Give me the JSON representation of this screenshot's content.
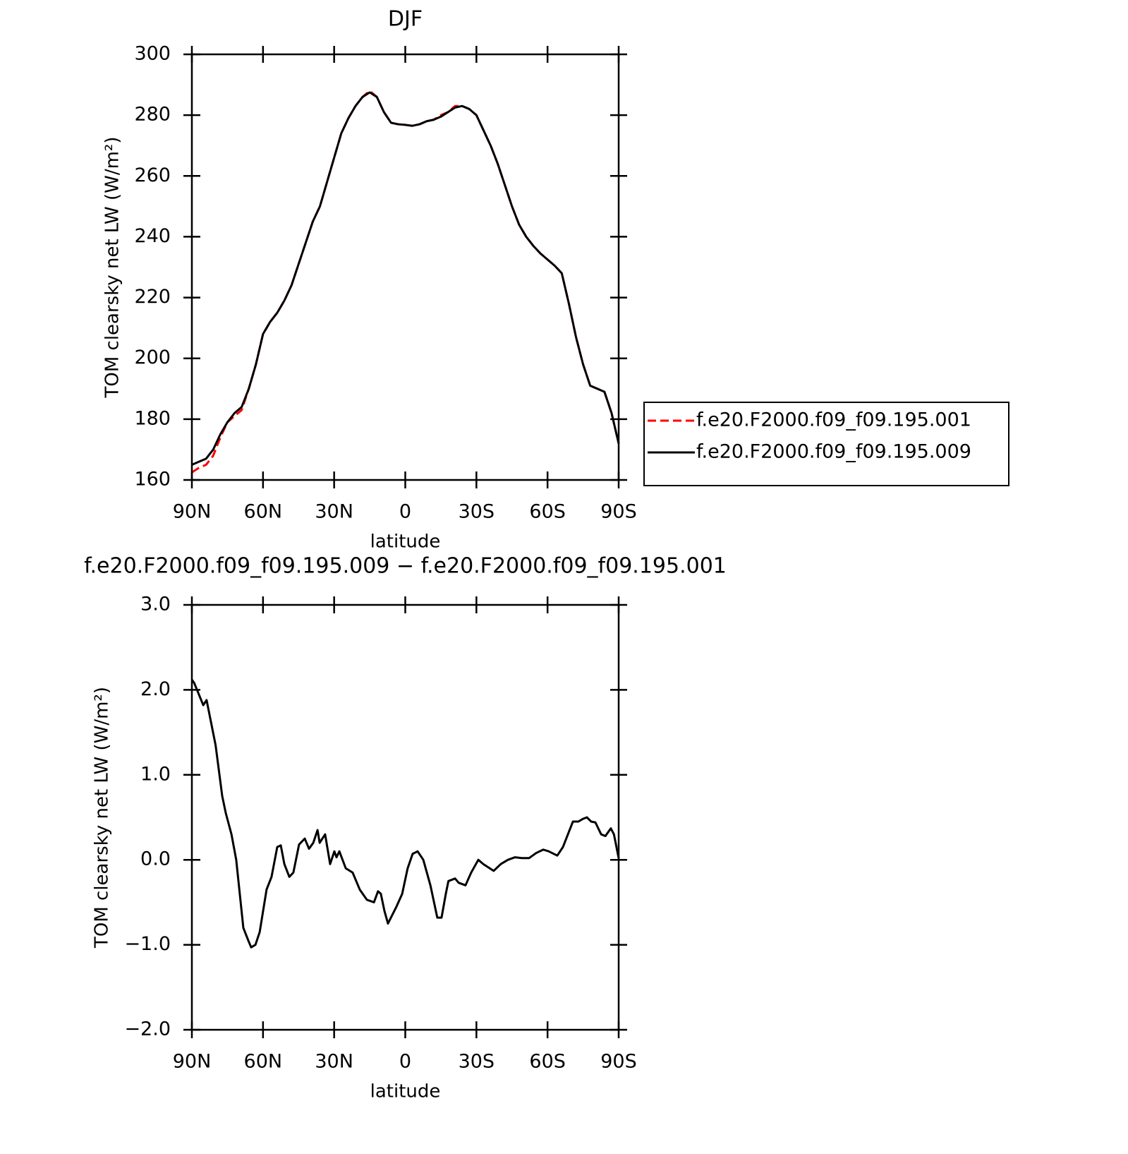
{
  "chart_data": [
    {
      "type": "line",
      "title": "DJF",
      "xlabel": "latitude",
      "ylabel": "TOM clearsky net LW (W/m²)",
      "x": [
        90,
        87,
        84,
        81,
        78,
        75,
        72,
        69,
        66,
        63,
        60,
        57,
        54,
        51,
        48,
        45,
        42,
        39,
        36,
        33,
        30,
        27,
        24,
        21,
        18,
        15,
        12,
        9,
        6,
        3,
        0,
        -3,
        -6,
        -9,
        -12,
        -15,
        -18,
        -21,
        -24,
        -27,
        -30,
        -33,
        -36,
        -39,
        -42,
        -45,
        -48,
        -51,
        -54,
        -57,
        -60,
        -63,
        -66,
        -69,
        -72,
        -75,
        -78,
        -81,
        -84,
        -87,
        -90
      ],
      "series": [
        {
          "name": "f.e20.F2000.f09_f09.195.001",
          "color": "#ff0000",
          "dash": true,
          "values": [
            162.5,
            164,
            165,
            168,
            174,
            179,
            181,
            183,
            190,
            198,
            208,
            212,
            215,
            219,
            224,
            231,
            238,
            245,
            250,
            258,
            266,
            274,
            279,
            283,
            286,
            288,
            286,
            281,
            277.5,
            277,
            276.8,
            276.5,
            277,
            278,
            278.5,
            280,
            281,
            283,
            283,
            282,
            280,
            275,
            270,
            264,
            257,
            250,
            244,
            240,
            237,
            234.5,
            232.5,
            230.5,
            228,
            218,
            207,
            198,
            191,
            190,
            189,
            182,
            172
          ]
        },
        {
          "name": "f.e20.F2000.f09_f09.195.009",
          "color": "#000000",
          "dash": false,
          "values": [
            165,
            166,
            167,
            170,
            175,
            179,
            182,
            184,
            190,
            198,
            208,
            212,
            215,
            219,
            224,
            231,
            238,
            245,
            250,
            258,
            266,
            274,
            279,
            283,
            286,
            287.5,
            286,
            281,
            277.5,
            277,
            276.8,
            276.5,
            277,
            278,
            278.5,
            279.5,
            281,
            282.5,
            283,
            282,
            280,
            275,
            270,
            264,
            257,
            250,
            244,
            240,
            237,
            234.5,
            232.5,
            230.5,
            228,
            218,
            207,
            198,
            191,
            190,
            189,
            182,
            172
          ]
        }
      ],
      "xlim": [
        90,
        -90
      ],
      "xticks": [
        {
          "value": 90,
          "label": "90N"
        },
        {
          "value": 60,
          "label": "60N"
        },
        {
          "value": 30,
          "label": "30N"
        },
        0,
        {
          "value": -30,
          "label": "30S"
        },
        {
          "value": -60,
          "label": "60S"
        },
        {
          "value": -90,
          "label": "90S"
        }
      ],
      "ylim": [
        160,
        300
      ],
      "yticks": [
        160,
        180,
        200,
        220,
        240,
        260,
        280,
        300
      ],
      "legend": "right"
    },
    {
      "type": "line",
      "title": "f.e20.F2000.f09_f09.195.009 − f.e20.F2000.f09_f09.195.001",
      "xlabel": "latitude",
      "ylabel": "TOM clearsky net LW (W/m²)",
      "x": [
        90,
        89,
        85.2,
        83.8,
        80,
        77.2,
        75.7,
        73.3,
        71.3,
        68.3,
        66.2,
        65,
        63.2,
        61.4,
        58.5,
        56.4,
        54,
        52.5,
        51,
        48.9,
        47.2,
        44.8,
        42.4,
        40.6,
        38.8,
        37,
        36.1,
        33.8,
        31.7,
        29.9,
        29,
        27.8,
        25.1,
        22.2,
        19.2,
        16.2,
        13.2,
        11.5,
        10.3,
        8.8,
        7.3,
        5.5,
        3.7,
        1.3,
        -1,
        -3.1,
        -5.2,
        -7.6,
        -10.6,
        -13.5,
        -15.3,
        -17.1,
        -18.2,
        -21,
        -22.5,
        -25.4,
        -27.8,
        -30.8,
        -32.9,
        -37.3,
        -40.3,
        -43.3,
        -46.3,
        -49.2,
        -52.2,
        -55.2,
        -58.2,
        -60.5,
        -64.1,
        -66.5,
        -68.6,
        -70.7,
        -73,
        -74.8,
        -76.6,
        -78.4,
        -80.2,
        -82.6,
        -84.4,
        -86.7,
        -88,
        -90
      ],
      "series": [
        {
          "color": "#000000",
          "dash": false,
          "values": [
            2.12,
            2.08,
            1.82,
            1.88,
            1.35,
            0.75,
            0.55,
            0.3,
            0.0,
            -0.8,
            -0.95,
            -1.03,
            -1.0,
            -0.85,
            -0.35,
            -0.2,
            0.15,
            0.17,
            -0.05,
            -0.2,
            -0.15,
            0.18,
            0.25,
            0.13,
            0.2,
            0.35,
            0.2,
            0.3,
            -0.05,
            0.1,
            0.03,
            0.1,
            -0.1,
            -0.15,
            -0.35,
            -0.47,
            -0.5,
            -0.37,
            -0.4,
            -0.6,
            -0.75,
            -0.65,
            -0.55,
            -0.4,
            -0.1,
            0.07,
            0.1,
            0.0,
            -0.3,
            -0.68,
            -0.68,
            -0.4,
            -0.25,
            -0.22,
            -0.27,
            -0.3,
            -0.15,
            0.0,
            -0.05,
            -0.13,
            -0.05,
            0.0,
            0.03,
            0.02,
            0.02,
            0.08,
            0.12,
            0.1,
            0.05,
            0.15,
            0.3,
            0.45,
            0.45,
            0.48,
            0.5,
            0.45,
            0.44,
            0.3,
            0.28,
            0.37,
            0.3,
            0.02
          ]
        }
      ],
      "xlim": [
        90,
        -90
      ],
      "xticks": [
        {
          "value": 90,
          "label": "90N"
        },
        {
          "value": 60,
          "label": "60N"
        },
        {
          "value": 30,
          "label": "30N"
        },
        0,
        {
          "value": -30,
          "label": "30S"
        },
        {
          "value": -60,
          "label": "60S"
        },
        {
          "value": -90,
          "label": "90S"
        }
      ],
      "ylim": [
        -2,
        3
      ],
      "yticks": [
        {
          "value": -2,
          "label": "−2.0"
        },
        {
          "value": -1,
          "label": "−1.0"
        },
        {
          "value": 0,
          "label": "0.0"
        },
        {
          "value": 1,
          "label": "1.0"
        },
        {
          "value": 2,
          "label": "2.0"
        },
        {
          "value": 3,
          "label": "3.0"
        }
      ]
    }
  ]
}
